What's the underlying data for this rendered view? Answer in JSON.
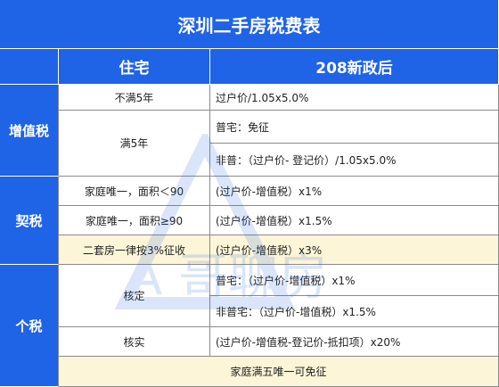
{
  "title": "深圳二手房税费表",
  "header": {
    "col1": "住宅",
    "col2": "208新政后"
  },
  "sections": {
    "vat": {
      "label": "增值税",
      "rows": [
        {
          "condition": "不满5年",
          "rule": "过户价/1.05x5.0%"
        },
        {
          "condition": "满5年",
          "rules": [
            "普宅：免征",
            "非普：（过户价- 登记价）/1.05x5.0%"
          ]
        }
      ]
    },
    "deed": {
      "label": "契税",
      "rows": [
        {
          "condition": "家庭唯一，面积＜90",
          "rule": "(过户价-增值税）x1%"
        },
        {
          "condition": "家庭唯一，面积≥90",
          "rule": "(过户价-增值税）x1.5%"
        },
        {
          "condition": "二套房一律按3%征收",
          "rule": "(过户价-增值税）x3%"
        }
      ]
    },
    "income": {
      "label": "个税",
      "rows": [
        {
          "condition": "核定",
          "rules": [
            "普宅：（过户价-增值税）x1%",
            "非普宅：（过户价-增值税）x1.5%"
          ]
        },
        {
          "condition": "核实",
          "rule": "(过户价-增值税-登记价-抵扣项）x20%"
        }
      ],
      "note": "家庭满五唯一可免征"
    }
  },
  "watermark": "A 哥聊房"
}
